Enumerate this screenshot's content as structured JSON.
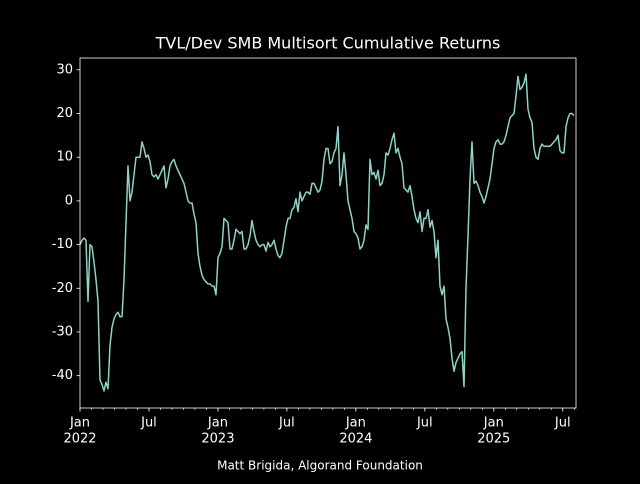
{
  "chart_data": {
    "type": "line",
    "title": "TVL/Dev SMB Multisort Cumulative Returns",
    "footer": "Matt Brigida, Algorand Foundation",
    "color": "#8dd3c7",
    "grid": false,
    "xlim": [
      2022,
      2025.596
    ],
    "ylim": [
      -47.4,
      32.7
    ],
    "yticks": [
      -40,
      -30,
      -20,
      -10,
      0,
      10,
      20,
      30
    ],
    "xticks": [
      {
        "value": 2022,
        "label": "Jan"
      },
      {
        "value": 2022.5,
        "label": "Jul"
      },
      {
        "value": 2023,
        "label": "Jan"
      },
      {
        "value": 2023.5,
        "label": "Jul"
      },
      {
        "value": 2024,
        "label": "Jan"
      },
      {
        "value": 2024.5,
        "label": "Jul"
      },
      {
        "value": 2025,
        "label": "Jan"
      },
      {
        "value": 2025.5,
        "label": "Jul"
      }
    ],
    "year_labels": [
      2022,
      2023,
      2024,
      2025
    ],
    "x": [
      2022,
      2022.0145,
      2022.029,
      2022.0435,
      2022.058,
      2022.0725,
      2022.087,
      2022.1015,
      2022.116,
      2022.1305,
      2022.145,
      2022.1595,
      2022.174,
      2022.1885,
      2022.203,
      2022.2175,
      2022.232,
      2022.2465,
      2022.261,
      2022.2755,
      2022.29,
      2022.3045,
      2022.319,
      2022.3335,
      2022.348,
      2022.3625,
      2022.377,
      2022.3915,
      2022.406,
      2022.4205,
      2022.435,
      2022.4495,
      2022.464,
      2022.4785,
      2022.493,
      2022.5075,
      2022.522,
      2022.5365,
      2022.551,
      2022.5655,
      2022.58,
      2022.5945,
      2022.609,
      2022.6235,
      2022.638,
      2022.6525,
      2022.667,
      2022.6815,
      2022.696,
      2022.7105,
      2022.725,
      2022.7395,
      2022.754,
      2022.7685,
      2022.783,
      2022.7975,
      2022.812,
      2022.8265,
      2022.841,
      2022.8555,
      2022.87,
      2022.8845,
      2022.899,
      2022.9135,
      2022.928,
      2022.9425,
      2022.957,
      2022.9715,
      2022.986,
      2023.0005,
      2023.015,
      2023.0295,
      2023.044,
      2023.0585,
      2023.073,
      2023.0875,
      2023.102,
      2023.1165,
      2023.131,
      2023.1455,
      2023.16,
      2023.1745,
      2023.189,
      2023.2035,
      2023.218,
      2023.2325,
      2023.247,
      2023.2615,
      2023.276,
      2023.2905,
      2023.305,
      2023.3195,
      2023.334,
      2023.3485,
      2023.363,
      2023.3775,
      2023.392,
      2023.4065,
      2023.421,
      2023.4355,
      2023.45,
      2023.4645,
      2023.479,
      2023.4935,
      2023.508,
      2023.5225,
      2023.537,
      2023.5515,
      2023.566,
      2023.5805,
      2023.595,
      2023.6095,
      2023.624,
      2023.6385,
      2023.653,
      2023.6675,
      2023.682,
      2023.6965,
      2023.711,
      2023.7255,
      2023.74,
      2023.7545,
      2023.769,
      2023.7835,
      2023.798,
      2023.8125,
      2023.827,
      2023.8415,
      2023.856,
      2023.8705,
      2023.885,
      2023.8995,
      2023.914,
      2023.9285,
      2023.943,
      2023.9575,
      2023.972,
      2023.9865,
      2024.001,
      2024.0155,
      2024.03,
      2024.0445,
      2024.059,
      2024.0735,
      2024.088,
      2024.1025,
      2024.117,
      2024.1315,
      2024.146,
      2024.1605,
      2024.175,
      2024.1895,
      2024.204,
      2024.2185,
      2024.233,
      2024.2475,
      2024.262,
      2024.2765,
      2024.291,
      2024.3055,
      2024.32,
      2024.3345,
      2024.349,
      2024.3635,
      2024.378,
      2024.3925,
      2024.407,
      2024.4215,
      2024.436,
      2024.4505,
      2024.465,
      2024.4795,
      2024.494,
      2024.5085,
      2024.523,
      2024.5375,
      2024.552,
      2024.5665,
      2024.581,
      2024.5955,
      2024.61,
      2024.6245,
      2024.639,
      2024.6535,
      2024.668,
      2024.6825,
      2024.697,
      2024.7115,
      2024.726,
      2024.7405,
      2024.755,
      2024.7695,
      2024.784,
      2024.7985,
      2024.813,
      2024.8275,
      2024.842,
      2024.8565,
      2024.871,
      2024.8855,
      2024.9,
      2024.9145,
      2024.929,
      2024.9435,
      2024.958,
      2024.9725,
      2024.987,
      2025.0015,
      2025.016,
      2025.0305,
      2025.045,
      2025.0595,
      2025.074,
      2025.0885,
      2025.103,
      2025.1175,
      2025.132,
      2025.1465,
      2025.161,
      2025.1755,
      2025.19,
      2025.2045,
      2025.219,
      2025.2335,
      2025.248,
      2025.2625,
      2025.277,
      2025.2915,
      2025.306,
      2025.3205,
      2025.335,
      2025.3495,
      2025.364,
      2025.3785,
      2025.393,
      2025.4075,
      2025.422,
      2025.4365,
      2025.451,
      2025.4655,
      2025.48,
      2025.4945,
      2025.509,
      2025.5235,
      2025.538,
      2025.5525,
      2025.567,
      2025.5815
    ],
    "values": [
      -10,
      -9,
      -8.5,
      -9,
      -23,
      -10,
      -10.5,
      -14,
      -18,
      -23,
      -41,
      -42,
      -43.5,
      -41.5,
      -43,
      -33,
      -29,
      -27,
      -26,
      -25.5,
      -26.5,
      -26.5,
      -18,
      -5,
      8,
      0,
      2,
      6,
      10,
      10,
      10,
      13.5,
      12,
      10,
      10.5,
      9,
      6,
      5.5,
      6,
      5,
      6,
      7,
      8,
      3,
      5,
      8,
      9,
      9.5,
      8,
      7,
      6,
      5,
      4,
      2,
      0,
      -0.5,
      -0.5,
      -3,
      -5,
      -12,
      -15,
      -17,
      -18,
      -18.5,
      -19,
      -19,
      -19.5,
      -19.5,
      -21.5,
      -13,
      -12,
      -10.5,
      -4,
      -4.5,
      -5,
      -11,
      -11,
      -9,
      -6.5,
      -7,
      -7.5,
      -7,
      -11,
      -11,
      -10,
      -8,
      -4.5,
      -7,
      -9,
      -10,
      -10.5,
      -10,
      -10,
      -11.5,
      -9.5,
      -10.5,
      -10,
      -9,
      -11,
      -12.5,
      -13,
      -12,
      -9,
      -6,
      -4,
      -4,
      -2,
      -1.5,
      0.5,
      -2.5,
      2,
      0,
      1,
      2,
      2,
      1.5,
      4,
      4,
      3,
      2,
      2.5,
      4.5,
      9.5,
      12,
      12,
      8.5,
      9,
      11,
      12,
      17,
      3.5,
      6,
      11,
      6,
      0,
      -2,
      -4,
      -7,
      -7.5,
      -8.5,
      -11,
      -10.5,
      -9,
      -5.5,
      -6.5,
      9.5,
      6,
      6.5,
      5,
      7,
      3.5,
      4,
      6,
      11,
      10.5,
      12,
      14,
      15.5,
      11,
      12,
      10,
      8.5,
      3,
      2.5,
      2,
      3.5,
      1,
      -2,
      -4,
      -5,
      -2.5,
      -7,
      -4,
      -4,
      -2,
      -6,
      -4.5,
      -7,
      -13,
      -9,
      -19.5,
      -21.5,
      -19.5,
      -27,
      -29,
      -31.5,
      -36,
      -39,
      -37,
      -36,
      -35,
      -34.5,
      -42.5,
      -20,
      -8,
      5,
      13.5,
      4,
      4.5,
      3.5,
      2,
      1,
      -0.5,
      1,
      3,
      5,
      8.5,
      12,
      13.5,
      14,
      13,
      13,
      13.5,
      15,
      17,
      19,
      19.5,
      20,
      24,
      28.5,
      25.5,
      26,
      27,
      29,
      21,
      19,
      18,
      12,
      10,
      9.5,
      12,
      13,
      12.5,
      12.5,
      12.5,
      12.5,
      13,
      13.5,
      14,
      15,
      11.5,
      11,
      11,
      17,
      19,
      20,
      20,
      19.5
    ]
  }
}
